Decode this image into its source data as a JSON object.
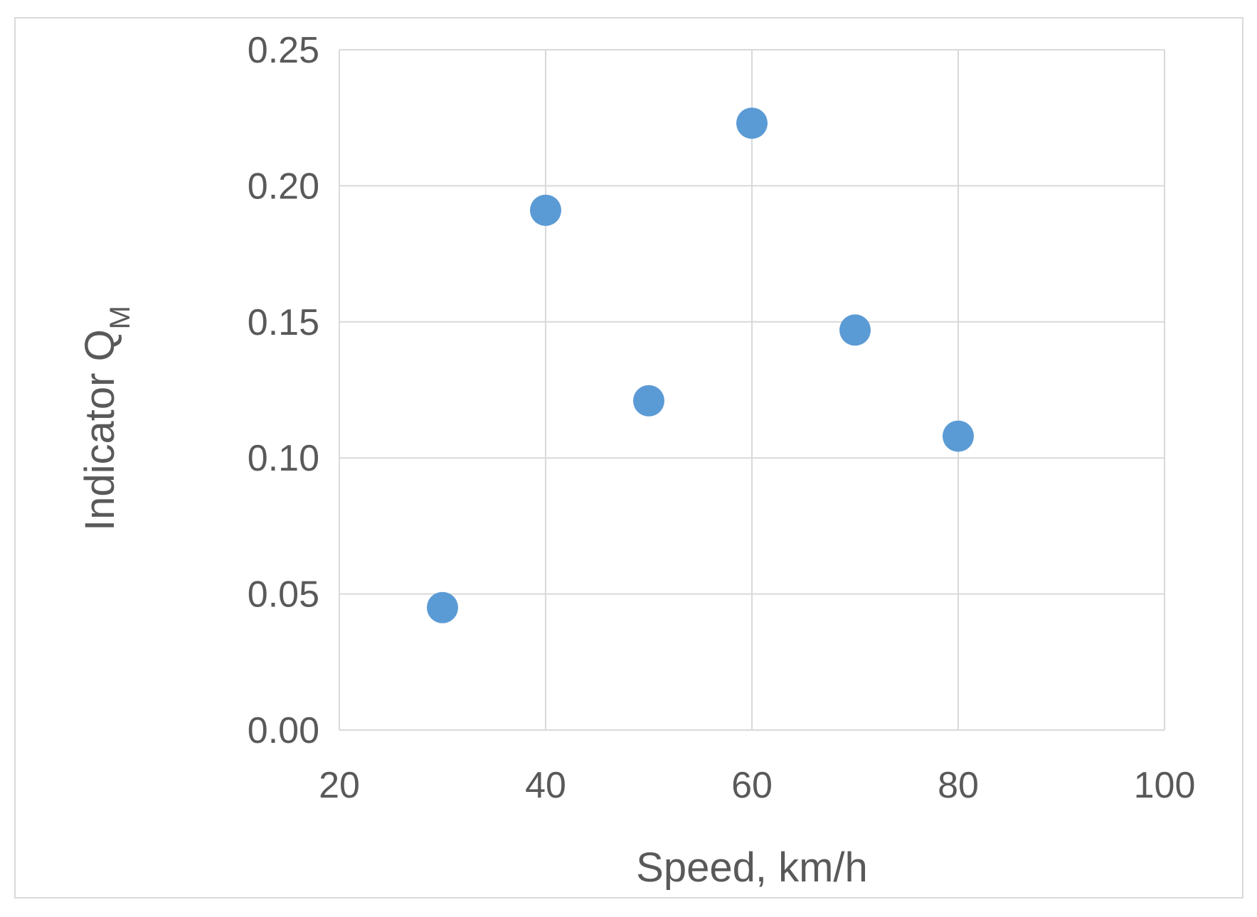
{
  "chart_data": {
    "type": "scatter",
    "xlabel": "Speed, km/h",
    "ylabel": "Indicator Q",
    "ylabel_subscript": "M",
    "xlim": [
      20,
      100
    ],
    "ylim": [
      0,
      0.25
    ],
    "x_ticks": [
      "20",
      "40",
      "60",
      "80",
      "100"
    ],
    "y_ticks": [
      "0.00",
      "0.05",
      "0.10",
      "0.15",
      "0.20",
      "0.25"
    ],
    "grid": true,
    "legend": "none",
    "marker_color": "#5b9bd5",
    "series": [
      {
        "x": [
          30,
          40,
          50,
          60,
          70,
          80
        ],
        "y": [
          0.045,
          0.191,
          0.121,
          0.223,
          0.147,
          0.108
        ]
      }
    ]
  }
}
